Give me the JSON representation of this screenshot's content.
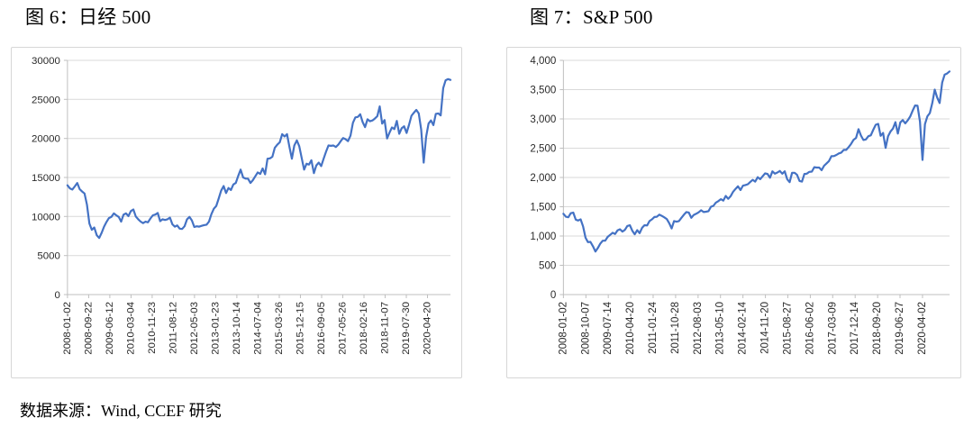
{
  "page": {
    "source_note": "数据来源：Wind, CCEF 研究"
  },
  "chart_data": [
    {
      "type": "line",
      "title": "图 6：日经 500",
      "xlabel": "",
      "ylabel": "",
      "grid": true,
      "legend_position": "none",
      "line_color": "#4472C4",
      "ylim": [
        0,
        30000
      ],
      "y_tick_values": [
        0,
        5000,
        10000,
        15000,
        20000,
        25000,
        30000
      ],
      "y_tick_labels": [
        "0",
        "5000",
        "10000",
        "15000",
        "20000",
        "25000",
        "30000"
      ],
      "x_tick_labels": [
        "2008-01-02",
        "2008-09-22",
        "2009-06-12",
        "2010-03-04",
        "2010-11-23",
        "2011-08-12",
        "2012-05-03",
        "2013-01-23",
        "2013-10-14",
        "2014-07-04",
        "2015-03-26",
        "2015-12-15",
        "2016-09-05",
        "2017-05-26",
        "2018-02-16",
        "2018-11-07",
        "2019-07-30",
        "2020-04-20"
      ],
      "last_label_fraction": 0.94,
      "series": [
        {
          "name": "日经500",
          "values": [
            14000,
            13600,
            13450,
            13850,
            14300,
            13500,
            13200,
            12950,
            11500,
            9100,
            8300,
            8600,
            7600,
            7250,
            7900,
            8700,
            9300,
            9800,
            9950,
            10400,
            10150,
            9950,
            9350,
            10250,
            10400,
            10050,
            10700,
            10900,
            10000,
            9650,
            9350,
            9150,
            9350,
            9250,
            9750,
            10150,
            10250,
            10450,
            9400,
            9650,
            9550,
            9650,
            9850,
            9000,
            8700,
            8850,
            8450,
            8400,
            8750,
            9650,
            9950,
            9500,
            8650,
            8750,
            8700,
            8800,
            8900,
            8950,
            9350,
            10300,
            11000,
            11350,
            12300,
            13300,
            13900,
            13000,
            13650,
            13400,
            14100,
            14300,
            15200,
            16000,
            15000,
            14850,
            14850,
            14300,
            14650,
            15150,
            15650,
            15450,
            16150,
            15400,
            17400,
            17450,
            17650,
            18800,
            19200,
            19500,
            20550,
            20250,
            20550,
            18900,
            17400,
            19100,
            19750,
            19000,
            17500,
            16000,
            16750,
            16650,
            17200,
            15550,
            16550,
            16900,
            16450,
            17400,
            18300,
            19100,
            19050,
            19100,
            18900,
            19200,
            19650,
            20050,
            19900,
            19650,
            20350,
            22000,
            22700,
            22750,
            23100,
            22100,
            21450,
            22450,
            22200,
            22300,
            22550,
            22850,
            24100,
            21900,
            22350,
            20000,
            20750,
            21400,
            21200,
            22250,
            20600,
            21300,
            21550,
            20700,
            21750,
            22900,
            23300,
            23650,
            23200,
            21150,
            16900,
            20200,
            21900,
            22300,
            21700,
            23150,
            23200,
            22950,
            26450,
            27450,
            27600,
            27500
          ]
        }
      ]
    },
    {
      "type": "line",
      "title": "图 7：S&P 500",
      "xlabel": "",
      "ylabel": "",
      "grid": true,
      "legend_position": "none",
      "line_color": "#4472C4",
      "ylim": [
        0,
        4000
      ],
      "y_tick_values": [
        0,
        500,
        1000,
        1500,
        2000,
        2500,
        3000,
        3500,
        4000
      ],
      "y_tick_labels": [
        "0",
        "500",
        "1,000",
        "1,500",
        "2,000",
        "2,500",
        "3,000",
        "3,500",
        "4,000"
      ],
      "x_tick_labels": [
        "2008-01-02",
        "2008-10-07",
        "2009-07-14",
        "2010-04-20",
        "2011-01-24",
        "2011-10-28",
        "2012-08-03",
        "2013-05-10",
        "2014-02-14",
        "2014-11-20",
        "2015-08-27",
        "2016-06-02",
        "2017-03-09",
        "2017-12-14",
        "2018-09-20",
        "2019-06-27",
        "2020-04-02"
      ],
      "last_label_fraction": 0.93,
      "series": [
        {
          "name": "S&P 500",
          "values": [
            1380,
            1330,
            1320,
            1390,
            1400,
            1280,
            1265,
            1285,
            1165,
            970,
            895,
            900,
            825,
            735,
            795,
            870,
            920,
            920,
            985,
            1020,
            1055,
            1035,
            1095,
            1115,
            1075,
            1105,
            1170,
            1185,
            1090,
            1030,
            1100,
            1050,
            1140,
            1185,
            1180,
            1255,
            1285,
            1325,
            1330,
            1365,
            1345,
            1320,
            1290,
            1220,
            1130,
            1255,
            1245,
            1255,
            1310,
            1365,
            1410,
            1400,
            1310,
            1360,
            1380,
            1405,
            1440,
            1410,
            1415,
            1425,
            1500,
            1515,
            1570,
            1595,
            1630,
            1605,
            1685,
            1635,
            1680,
            1755,
            1805,
            1850,
            1785,
            1860,
            1870,
            1885,
            1925,
            1960,
            1930,
            2005,
            1970,
            2020,
            2070,
            2060,
            1995,
            2105,
            2065,
            2085,
            2110,
            2065,
            2105,
            1970,
            1920,
            2080,
            2080,
            2045,
            1940,
            1930,
            2060,
            2065,
            2095,
            2100,
            2175,
            2170,
            2170,
            2125,
            2200,
            2240,
            2280,
            2365,
            2365,
            2385,
            2410,
            2425,
            2470,
            2470,
            2520,
            2575,
            2645,
            2675,
            2825,
            2715,
            2640,
            2650,
            2705,
            2720,
            2815,
            2900,
            2915,
            2710,
            2760,
            2505,
            2705,
            2785,
            2835,
            2945,
            2750,
            2940,
            2980,
            2925,
            2975,
            3040,
            3140,
            3230,
            3225,
            2955,
            2300,
            2910,
            3045,
            3100,
            3270,
            3500,
            3365,
            3270,
            3620,
            3755,
            3775,
            3810
          ]
        }
      ]
    }
  ]
}
